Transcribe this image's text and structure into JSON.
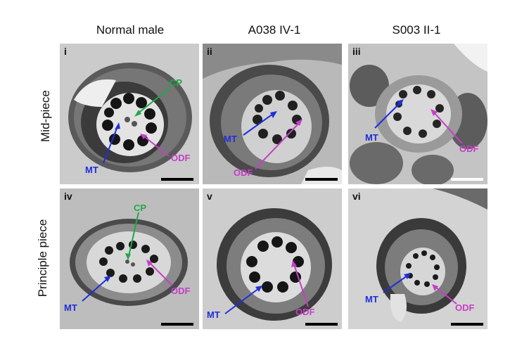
{
  "columns": [
    "Normal male",
    "A038 IV-1",
    "S003 II-1"
  ],
  "rows": [
    "Mid-piece",
    "Principle piece"
  ],
  "panels": [
    {
      "label": "i",
      "annotations": {
        "cp": "CP",
        "mt": "MT",
        "odf": "ODF"
      }
    },
    {
      "label": "ii",
      "annotations": {
        "mt": "MT",
        "odf": "ODF"
      }
    },
    {
      "label": "iii",
      "annotations": {
        "mt": "MT",
        "odf": "ODF"
      }
    },
    {
      "label": "iv",
      "annotations": {
        "cp": "CP",
        "mt": "MT",
        "odf": "ODF"
      }
    },
    {
      "label": "v",
      "annotations": {
        "mt": "MT",
        "odf": "ODF"
      }
    },
    {
      "label": "vi",
      "annotations": {
        "mt": "MT",
        "odf": "ODF"
      }
    }
  ],
  "colors": {
    "mt": "#1f2fd8",
    "odf": "#c53fc7",
    "cp": "#1fa84a",
    "scale_bar_mid_iii": "#ffffff"
  }
}
